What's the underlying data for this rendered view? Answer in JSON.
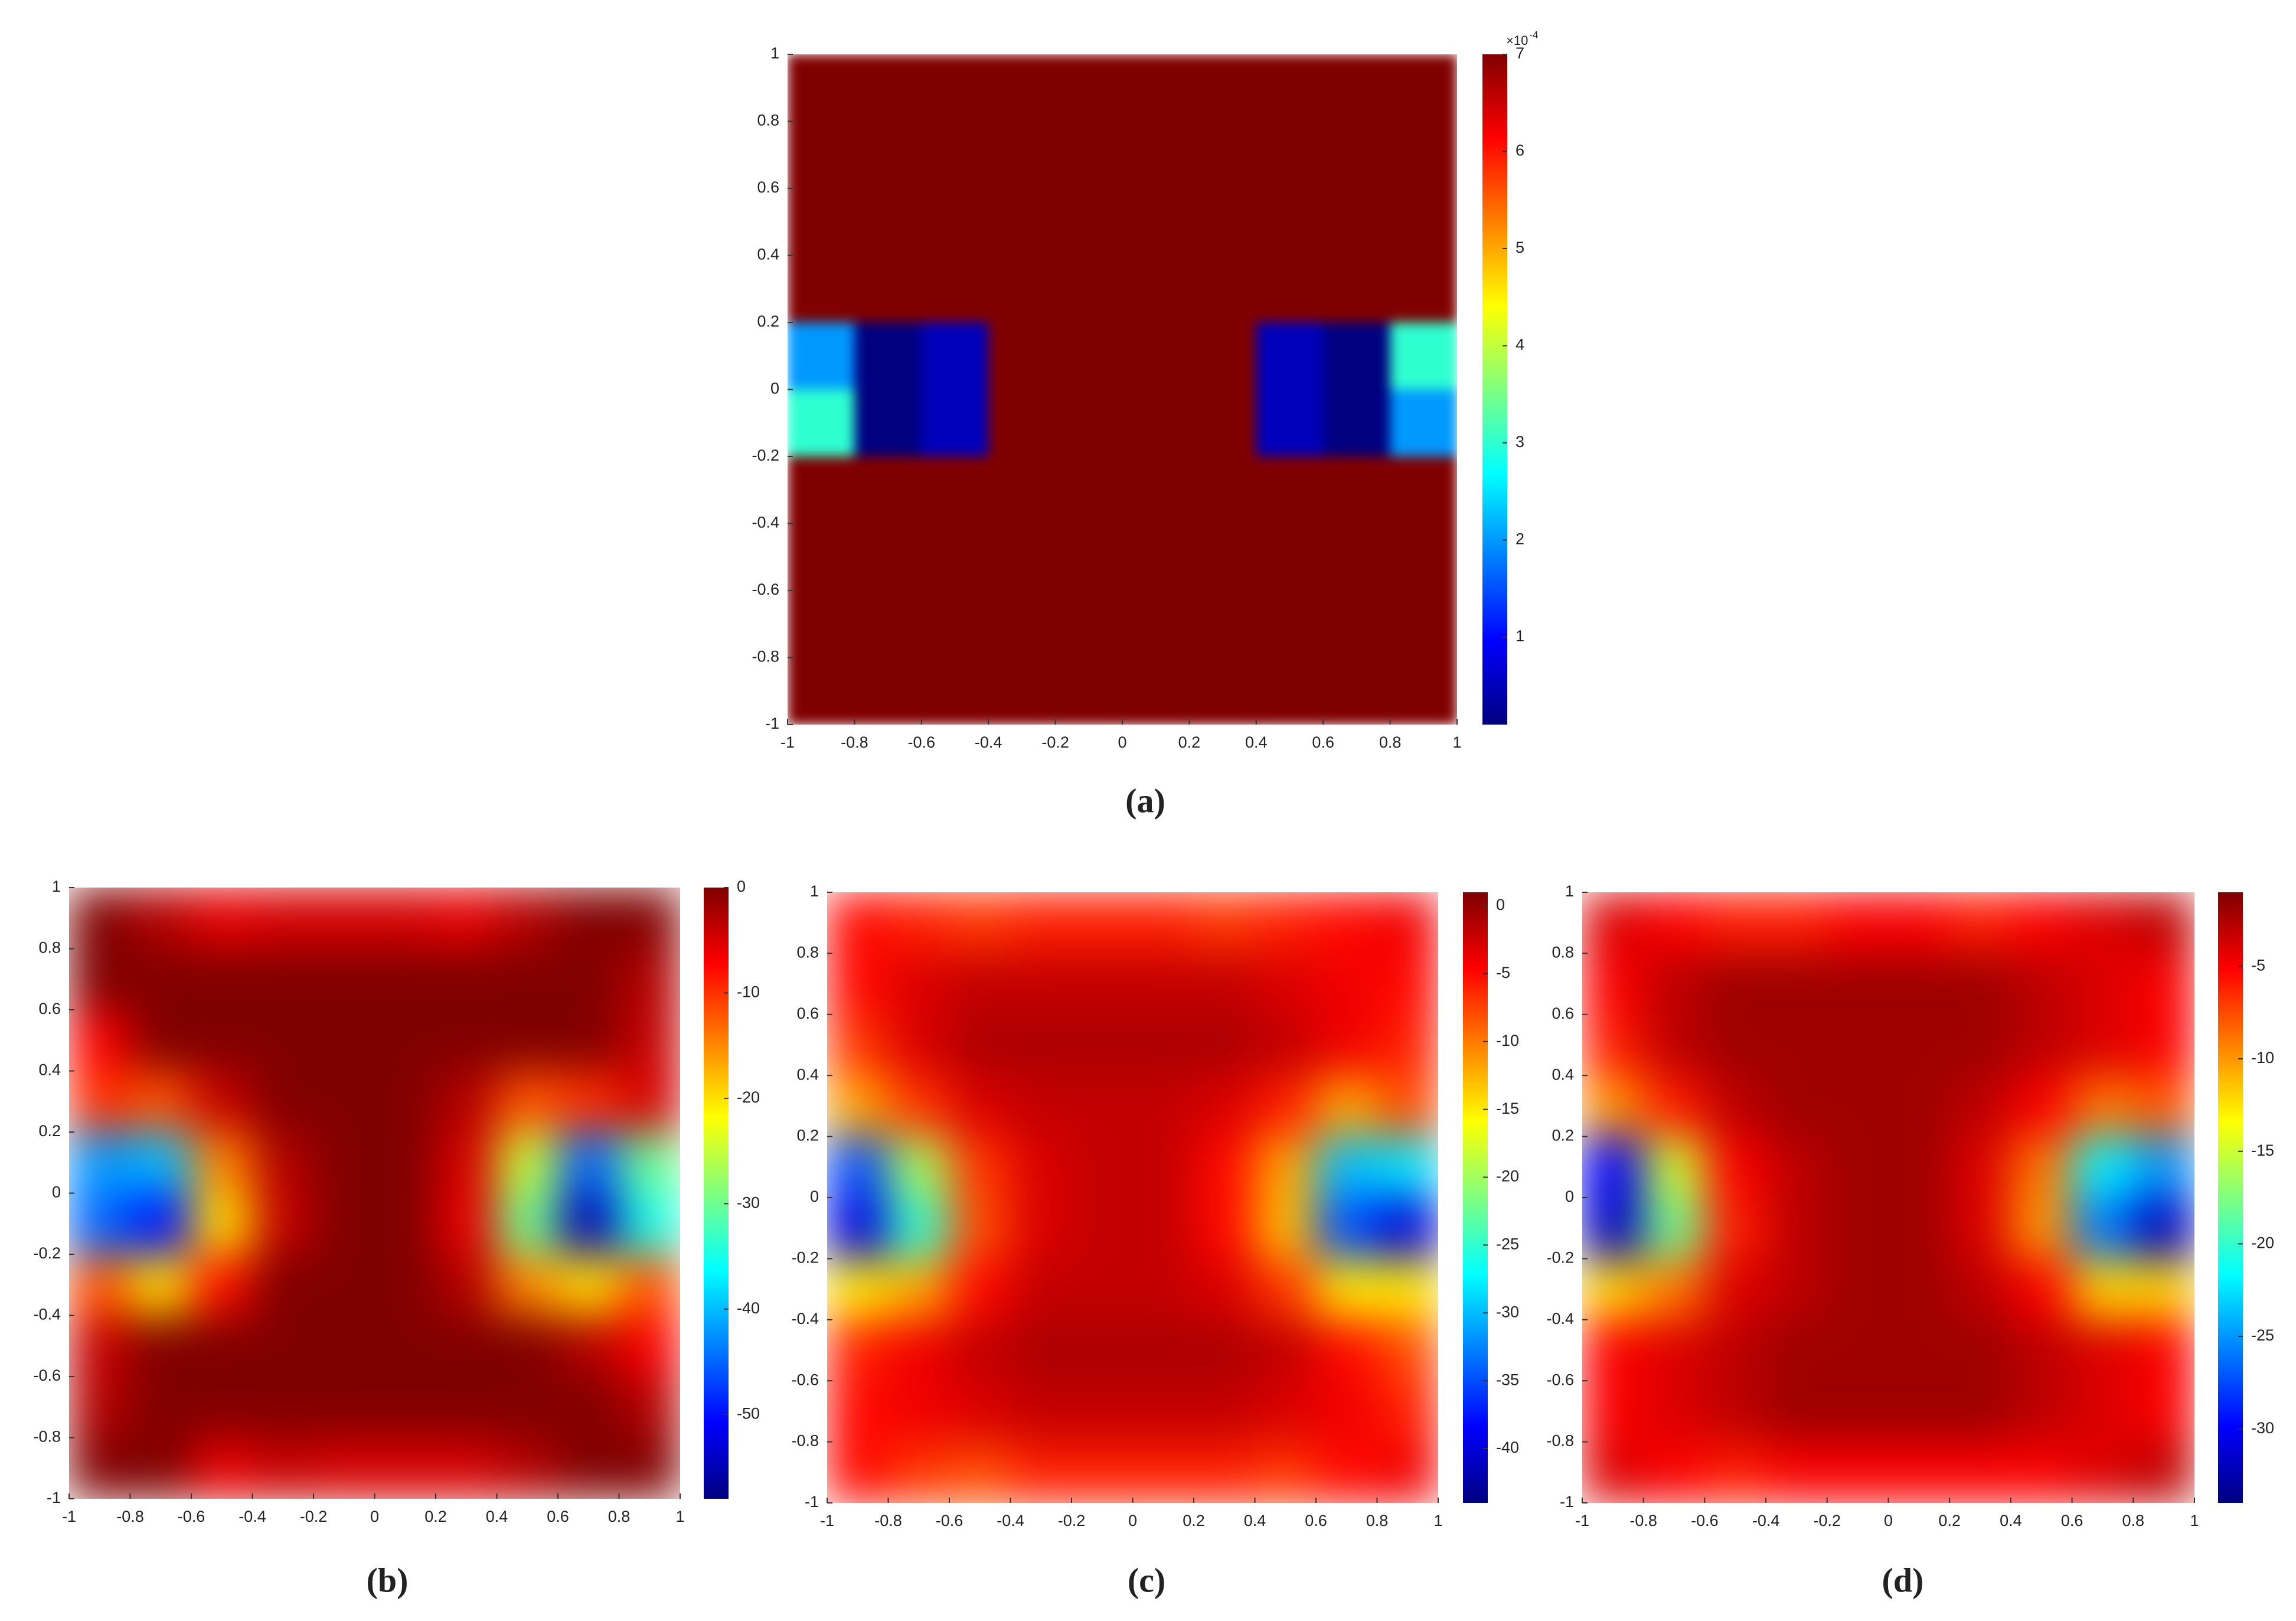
{
  "chart_data": [
    {
      "type": "heatmap",
      "caption": "(a)",
      "colormap": "jet",
      "x": [
        -0.9,
        -0.7,
        -0.5,
        -0.3,
        -0.1,
        0.1,
        0.3,
        0.5,
        0.7,
        0.9
      ],
      "y": [
        0.9,
        0.7,
        0.5,
        0.3,
        0.1,
        -0.1,
        -0.3,
        -0.5,
        -0.7,
        -0.9
      ],
      "z": [
        [
          7,
          7,
          7,
          7,
          7,
          7,
          7,
          7,
          7,
          7
        ],
        [
          7,
          7,
          7,
          7,
          7,
          7,
          7,
          7,
          7,
          7
        ],
        [
          7,
          7,
          7,
          7,
          7,
          7,
          7,
          7,
          7,
          7
        ],
        [
          7,
          7,
          7,
          7,
          7,
          7,
          7,
          7,
          7,
          7
        ],
        [
          2,
          0.1,
          0.5,
          7,
          7,
          7,
          7,
          0.5,
          0.1,
          3
        ],
        [
          3,
          0.1,
          0.5,
          7,
          7,
          7,
          7,
          0.5,
          0.1,
          2
        ],
        [
          7,
          7,
          7,
          7,
          7,
          7,
          7,
          7,
          7,
          7
        ],
        [
          7,
          7,
          7,
          7,
          7,
          7,
          7,
          7,
          7,
          7
        ],
        [
          7,
          7,
          7,
          7,
          7,
          7,
          7,
          7,
          7,
          7
        ],
        [
          7,
          7,
          7,
          7,
          7,
          7,
          7,
          7,
          7,
          7
        ]
      ],
      "xlim": [
        -1,
        1
      ],
      "ylim": [
        -1,
        1
      ],
      "xticks": [
        -1,
        -0.8,
        -0.6,
        -0.4,
        -0.2,
        0,
        0.2,
        0.4,
        0.6,
        0.8,
        1
      ],
      "yticks": [
        -1,
        -0.8,
        -0.6,
        -0.4,
        -0.2,
        0,
        0.2,
        0.4,
        0.6,
        0.8,
        1
      ],
      "zlim": [
        0.1,
        7
      ],
      "zticks": [
        1,
        2,
        3,
        4,
        5,
        6,
        7
      ],
      "colorbar_multiplier": "×10",
      "colorbar_exponent": "-4"
    },
    {
      "type": "heatmap",
      "caption": "(b)",
      "colormap": "jet",
      "x": [
        -0.9,
        -0.7,
        -0.5,
        -0.3,
        -0.1,
        0.1,
        0.3,
        0.5,
        0.7,
        0.9
      ],
      "y": [
        0.9,
        0.7,
        0.5,
        0.3,
        0.1,
        -0.1,
        -0.3,
        -0.5,
        -0.7,
        -0.9
      ],
      "z": [
        [
          0,
          -3,
          -6,
          -5,
          -5,
          -5,
          -6,
          -3,
          0,
          0
        ],
        [
          0,
          0,
          0,
          0,
          0,
          0,
          0,
          0,
          0,
          -3
        ],
        [
          -7,
          0,
          0,
          0,
          0,
          0,
          0,
          0,
          0,
          -4
        ],
        [
          -10,
          -12,
          -4,
          0,
          0,
          0,
          -3,
          -12,
          -10,
          -5
        ],
        [
          -42,
          -40,
          -15,
          -3,
          0,
          0,
          -5,
          -25,
          -45,
          -30
        ],
        [
          -45,
          -50,
          -20,
          -4,
          0,
          0,
          -6,
          -30,
          -55,
          -35
        ],
        [
          -12,
          -20,
          -8,
          0,
          0,
          0,
          -3,
          -15,
          -20,
          -12
        ],
        [
          -4,
          0,
          0,
          0,
          0,
          0,
          0,
          0,
          -3,
          -7
        ],
        [
          -3,
          0,
          0,
          0,
          0,
          0,
          0,
          0,
          0,
          -3
        ],
        [
          0,
          0,
          -6,
          -4,
          -5,
          -5,
          -5,
          -3,
          0,
          0
        ]
      ],
      "xlim": [
        -1,
        1
      ],
      "ylim": [
        -1,
        1
      ],
      "xticks": [
        -1,
        -0.8,
        -0.6,
        -0.4,
        -0.2,
        0,
        0.2,
        0.4,
        0.6,
        0.8,
        1
      ],
      "yticks": [
        -1,
        -0.8,
        -0.6,
        -0.4,
        -0.2,
        0,
        0.2,
        0.4,
        0.6,
        0.8,
        1
      ],
      "zlim": [
        -58,
        0
      ],
      "zticks": [
        0,
        -10,
        -20,
        -30,
        -40,
        -50
      ]
    },
    {
      "type": "heatmap",
      "caption": "(c)",
      "colormap": "jet",
      "x": [
        -0.9,
        -0.7,
        -0.5,
        -0.3,
        -0.1,
        0.1,
        0.3,
        0.5,
        0.7,
        0.9
      ],
      "y": [
        0.9,
        0.7,
        0.5,
        0.3,
        0.1,
        -0.1,
        -0.3,
        -0.5,
        -0.7,
        -0.9
      ],
      "z": [
        [
          -5,
          -6,
          -7,
          -6,
          -6,
          -6,
          -7,
          -6,
          -5,
          -4
        ],
        [
          -5,
          -3,
          -2,
          -2,
          -2,
          -2,
          -2,
          -3,
          -4,
          -5
        ],
        [
          -7,
          -3,
          -1,
          -1,
          -1,
          -1,
          -1,
          -2,
          -4,
          -6
        ],
        [
          -12,
          -7,
          -3,
          -2,
          -2,
          -2,
          -3,
          -6,
          -12,
          -8
        ],
        [
          -35,
          -20,
          -7,
          -3,
          -2,
          -2,
          -5,
          -12,
          -30,
          -28
        ],
        [
          -40,
          -25,
          -8,
          -3,
          -2,
          -2,
          -5,
          -13,
          -35,
          -40
        ],
        [
          -15,
          -12,
          -5,
          -2,
          -2,
          -2,
          -3,
          -7,
          -15,
          -15
        ],
        [
          -6,
          -4,
          -2,
          -1,
          -1,
          -1,
          -1,
          -2,
          -5,
          -8
        ],
        [
          -5,
          -4,
          -3,
          -2,
          -2,
          -2,
          -2,
          -3,
          -4,
          -6
        ],
        [
          -5,
          -7,
          -8,
          -6,
          -6,
          -6,
          -6,
          -7,
          -5,
          -4
        ]
      ],
      "xlim": [
        -1,
        1
      ],
      "ylim": [
        -1,
        1
      ],
      "xticks": [
        -1,
        -0.8,
        -0.6,
        -0.4,
        -0.2,
        0,
        0.2,
        0.4,
        0.6,
        0.8,
        1
      ],
      "yticks": [
        -1,
        -0.8,
        -0.6,
        -0.4,
        -0.2,
        0,
        0.2,
        0.4,
        0.6,
        0.8,
        1
      ],
      "zlim": [
        -44,
        1
      ],
      "zticks": [
        0,
        -5,
        -10,
        -15,
        -20,
        -25,
        -30,
        -35,
        -40
      ]
    },
    {
      "type": "heatmap",
      "caption": "(d)",
      "colormap": "jet",
      "x": [
        -0.9,
        -0.7,
        -0.5,
        -0.3,
        -0.1,
        0.1,
        0.3,
        0.5,
        0.7,
        0.9
      ],
      "y": [
        0.9,
        0.7,
        0.5,
        0.3,
        0.1,
        -0.1,
        -0.3,
        -0.5,
        -0.7,
        -0.9
      ],
      "z": [
        [
          -4,
          -5,
          -6,
          -6,
          -5,
          -5,
          -6,
          -5,
          -4,
          -3
        ],
        [
          -5,
          -3,
          -2,
          -2,
          -2,
          -2,
          -2,
          -3,
          -4,
          -5
        ],
        [
          -6,
          -3,
          -2,
          -2,
          -2,
          -2,
          -2,
          -3,
          -4,
          -5
        ],
        [
          -10,
          -6,
          -3,
          -2,
          -2,
          -2,
          -3,
          -5,
          -9,
          -8
        ],
        [
          -30,
          -15,
          -5,
          -3,
          -2,
          -2,
          -4,
          -9,
          -22,
          -25
        ],
        [
          -32,
          -18,
          -6,
          -3,
          -2,
          -2,
          -4,
          -10,
          -26,
          -32
        ],
        [
          -12,
          -9,
          -4,
          -3,
          -2,
          -2,
          -3,
          -5,
          -12,
          -12
        ],
        [
          -5,
          -4,
          -3,
          -2,
          -2,
          -2,
          -2,
          -3,
          -4,
          -5
        ],
        [
          -5,
          -4,
          -3,
          -2,
          -2,
          -2,
          -2,
          -3,
          -4,
          -5
        ],
        [
          -4,
          -5,
          -6,
          -5,
          -5,
          -5,
          -5,
          -5,
          -4,
          -3
        ]
      ],
      "xlim": [
        -1,
        1
      ],
      "ylim": [
        -1,
        1
      ],
      "xticks": [
        -1,
        -0.8,
        -0.6,
        -0.4,
        -0.2,
        0,
        0.2,
        0.4,
        0.6,
        0.8,
        1
      ],
      "yticks": [
        -1,
        -0.8,
        -0.6,
        -0.4,
        -0.2,
        0,
        0.2,
        0.4,
        0.6,
        0.8,
        1
      ],
      "zlim": [
        -34,
        -1
      ],
      "zticks": [
        -5,
        -10,
        -15,
        -20,
        -25,
        -30
      ]
    }
  ]
}
